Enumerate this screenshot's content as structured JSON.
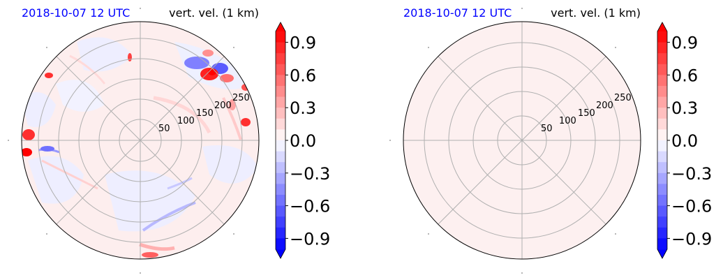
{
  "colors": {
    "positive": "#ff0000",
    "negative": "#0000ff",
    "neutral": "#ffffff",
    "grid": "#b0b0b0",
    "title_time": "#0000ff",
    "title_var": "#000000"
  },
  "chart_data": [
    {
      "type": "heatmap",
      "projection": "polar",
      "title_left": "2018-10-07 12 UTC",
      "title_right": "vert. vel. (1 km)",
      "radial_ticks": [
        50,
        100,
        150,
        200,
        250
      ],
      "rmax": 285,
      "angular_grid_deg": [
        0,
        45,
        90,
        135,
        180,
        225,
        270,
        315
      ],
      "colorbar": {
        "ticks": [
          0.9,
          0.6,
          0.3,
          0.0,
          -0.3,
          -0.6,
          -0.9
        ],
        "tick_labels": [
          "0.9",
          "0.6",
          "0.3",
          "0.0",
          "−0.3",
          "−0.6",
          "−0.9"
        ],
        "vmin": -1.0,
        "vmax": 1.0,
        "extend": "both",
        "levels": 20
      },
      "field": "mostly near 0 (light pink/light blue) with strong positive and negative cells in the northeast and along the west edge"
    },
    {
      "type": "heatmap",
      "projection": "polar",
      "title_left": "2018-10-07 12 UTC",
      "title_right": "vert. vel. (1 km)",
      "radial_ticks": [
        50,
        100,
        150,
        200,
        250
      ],
      "rmax": 240,
      "angular_grid_deg": [
        0,
        45,
        90,
        135,
        180,
        225,
        270,
        315
      ],
      "colorbar": {
        "ticks": [
          0.9,
          0.6,
          0.3,
          0.0,
          -0.3,
          -0.6,
          -0.9
        ],
        "tick_labels": [
          "0.9",
          "0.6",
          "0.3",
          "0.0",
          "−0.3",
          "−0.6",
          "−0.9"
        ],
        "vmin": -1.0,
        "vmax": 1.0,
        "extend": "both",
        "levels": 20
      },
      "field": "uniform value slightly above 0 (very light pink)"
    }
  ]
}
